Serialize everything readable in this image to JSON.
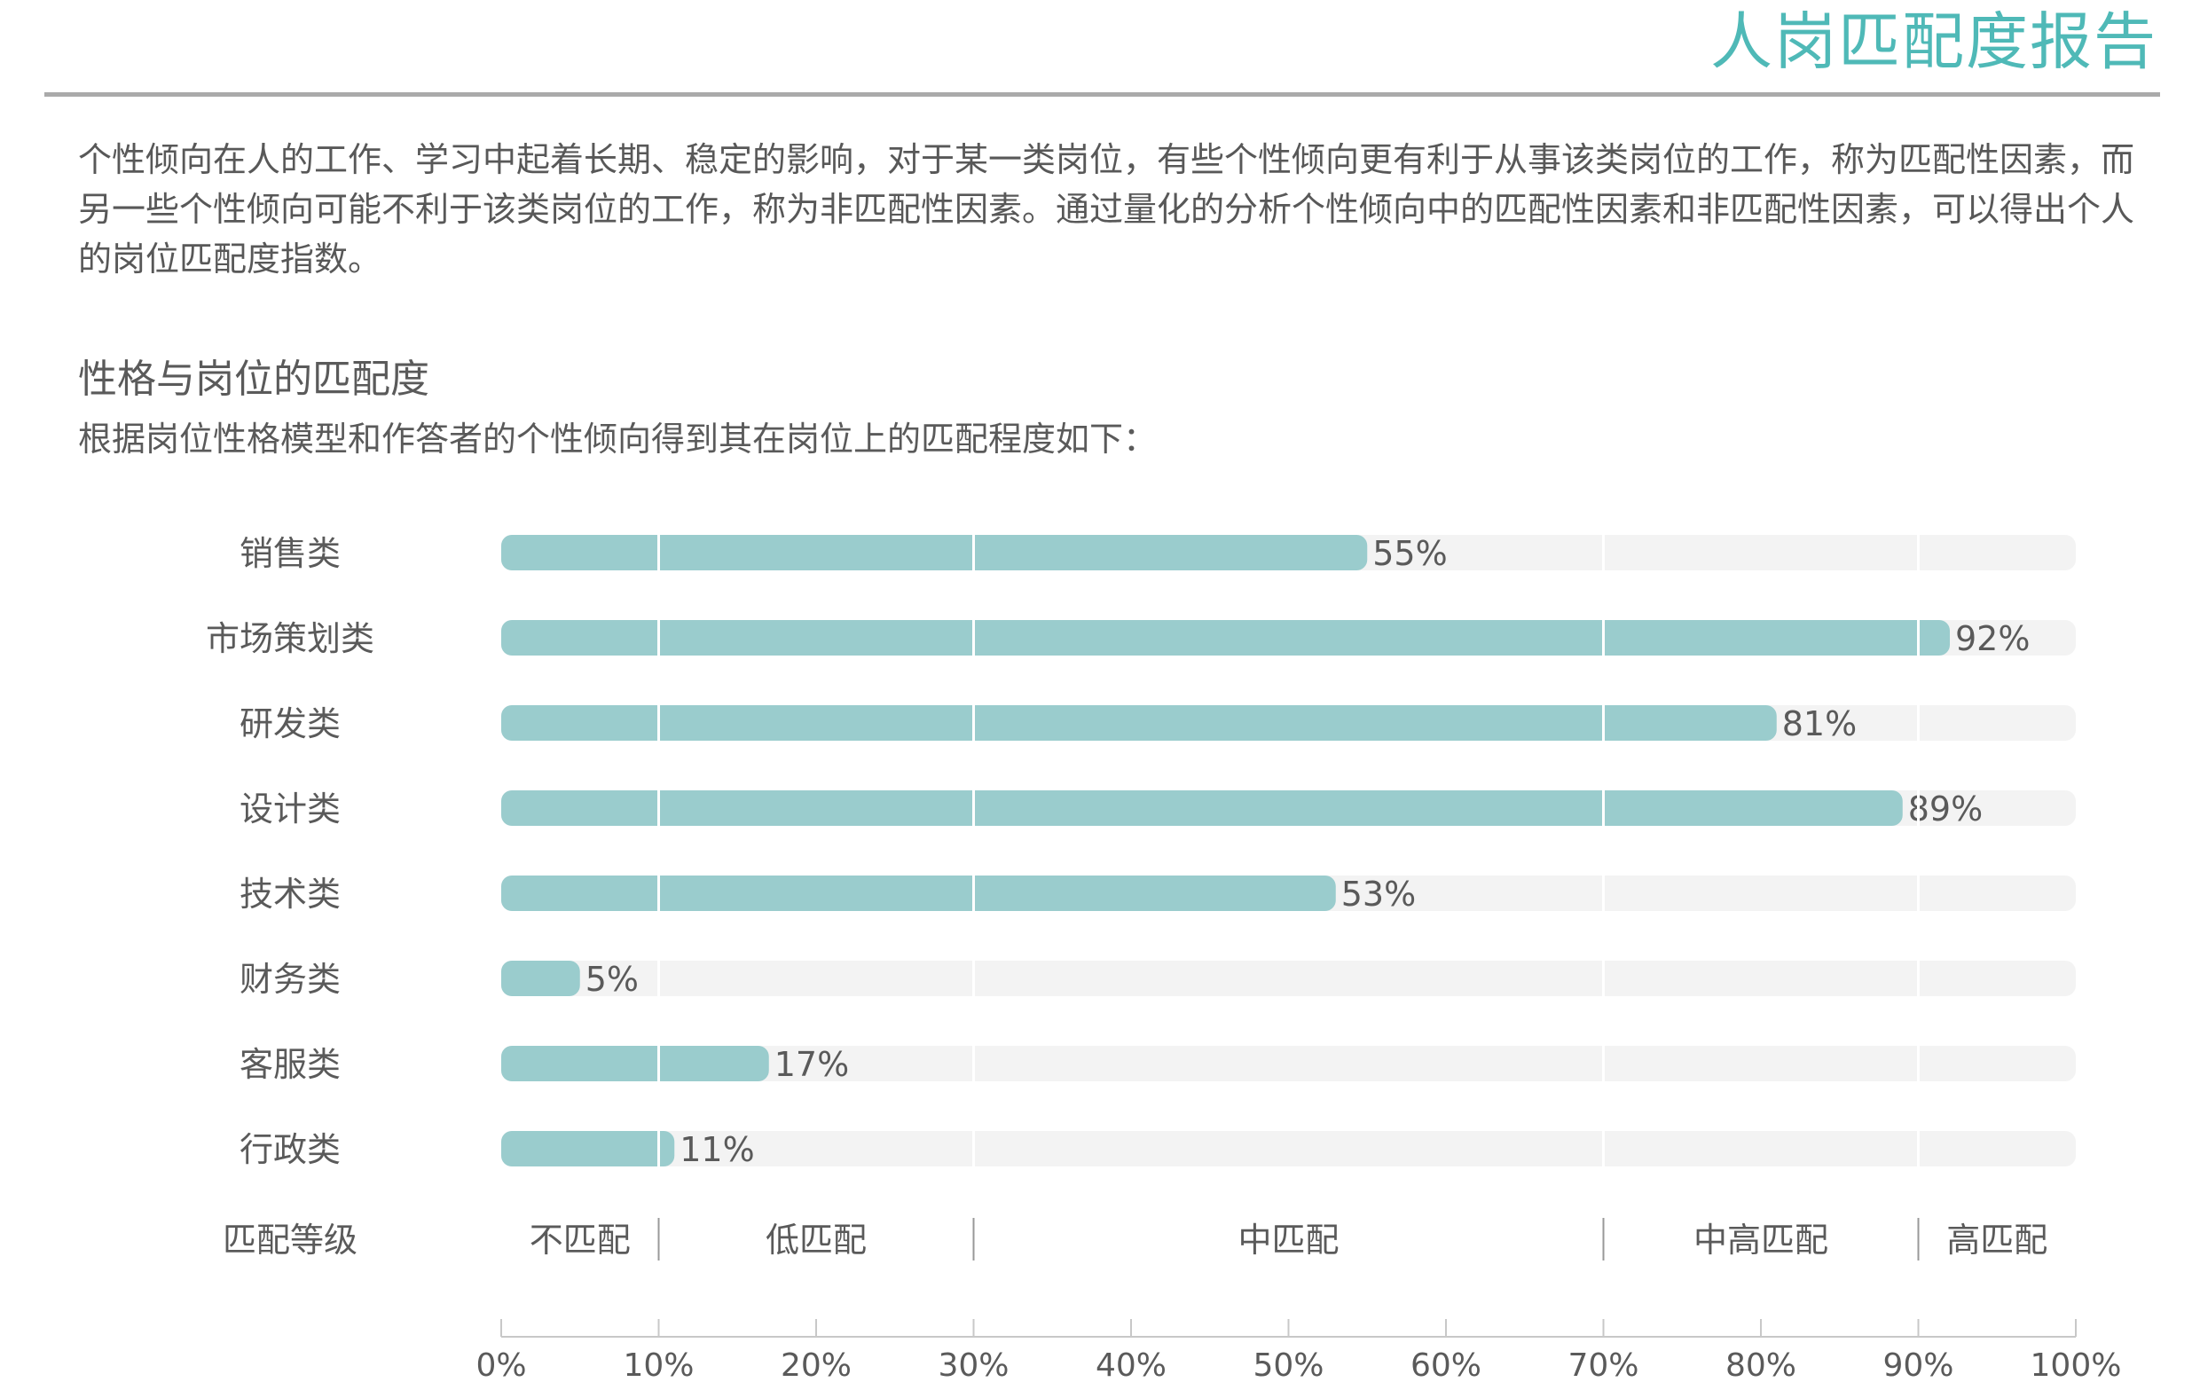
{
  "header": {
    "title": "人岗匹配度报告"
  },
  "intro": {
    "text": "个性倾向在人的工作、学习中起着长期、稳定的影响，对于某一类岗位，有些个性倾向更有利于从事该类岗位的工作，称为匹配性因素，而另一些个性倾向可能不利于该类岗位的工作，称为非匹配性因素。通过量化的分析个性倾向中的匹配性因素和非匹配性因素，可以得出个人的岗位匹配度指数。"
  },
  "section": {
    "heading": "性格与岗位的匹配度",
    "description": "根据岗位性格模型和作答者的个性倾向得到其在岗位上的匹配程度如下："
  },
  "colors": {
    "accent": "#4fb9b7",
    "bar": "#9acccd",
    "track": "#f3f3f3",
    "rule": "#aaaaaa",
    "text": "#5a5a5a"
  },
  "chart_data": {
    "type": "bar",
    "orientation": "horizontal",
    "categories": [
      "销售类",
      "市场策划类",
      "研发类",
      "设计类",
      "技术类",
      "财务类",
      "客服类",
      "行政类"
    ],
    "values": [
      55,
      92,
      81,
      89,
      53,
      5,
      17,
      11
    ],
    "value_labels": [
      "55%",
      "92%",
      "81%",
      "89%",
      "53%",
      "5%",
      "17%",
      "11%"
    ],
    "xlim": [
      0,
      100
    ],
    "x_ticks": [
      0,
      10,
      20,
      30,
      40,
      50,
      60,
      70,
      80,
      90,
      100
    ],
    "x_tick_labels": [
      "0%",
      "10%",
      "20%",
      "30%",
      "40%",
      "50%",
      "60%",
      "70%",
      "80%",
      "90%",
      "100%"
    ],
    "grid_lines": [
      10,
      30,
      70,
      90
    ],
    "band_axis_label": "匹配等级",
    "bands": [
      {
        "label": "不匹配",
        "from": 0,
        "to": 10
      },
      {
        "label": "低匹配",
        "from": 10,
        "to": 30
      },
      {
        "label": "中匹配",
        "from": 30,
        "to": 70
      },
      {
        "label": "中高匹配",
        "from": 70,
        "to": 90
      },
      {
        "label": "高匹配",
        "from": 90,
        "to": 100
      }
    ]
  }
}
